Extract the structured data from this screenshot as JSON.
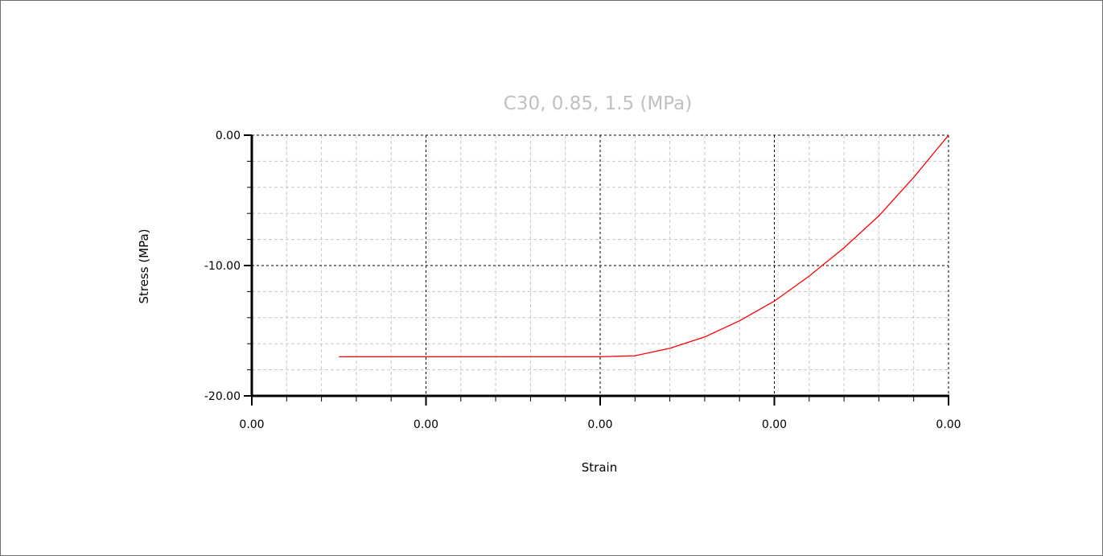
{
  "chart_data": {
    "type": "line",
    "title": "C30, 0.85, 1.5 (MPa)",
    "xlabel": "Strain",
    "ylabel": "Stress (MPa)",
    "x_tick_labels": [
      "0.00",
      "0.00",
      "0.00",
      "0.00",
      "0.00"
    ],
    "y_tick_labels": [
      "0.00",
      "-10.00",
      "-20.00"
    ],
    "xlim": [
      -0.004,
      0
    ],
    "ylim": [
      -20,
      0
    ],
    "grid": true,
    "series": [
      {
        "color": "#ff0000",
        "x": [
          -0.0035,
          -0.003,
          -0.0025,
          -0.002,
          -0.0018,
          -0.0016,
          -0.0014,
          -0.0012,
          -0.001,
          -0.0008,
          -0.0006,
          -0.0004,
          -0.0002,
          0.0
        ],
        "y": [
          -17.0,
          -17.0,
          -17.0,
          -17.0,
          -16.92,
          -16.35,
          -15.48,
          -14.24,
          -12.73,
          -10.81,
          -8.64,
          -6.19,
          -3.24,
          0.0
        ]
      }
    ]
  }
}
